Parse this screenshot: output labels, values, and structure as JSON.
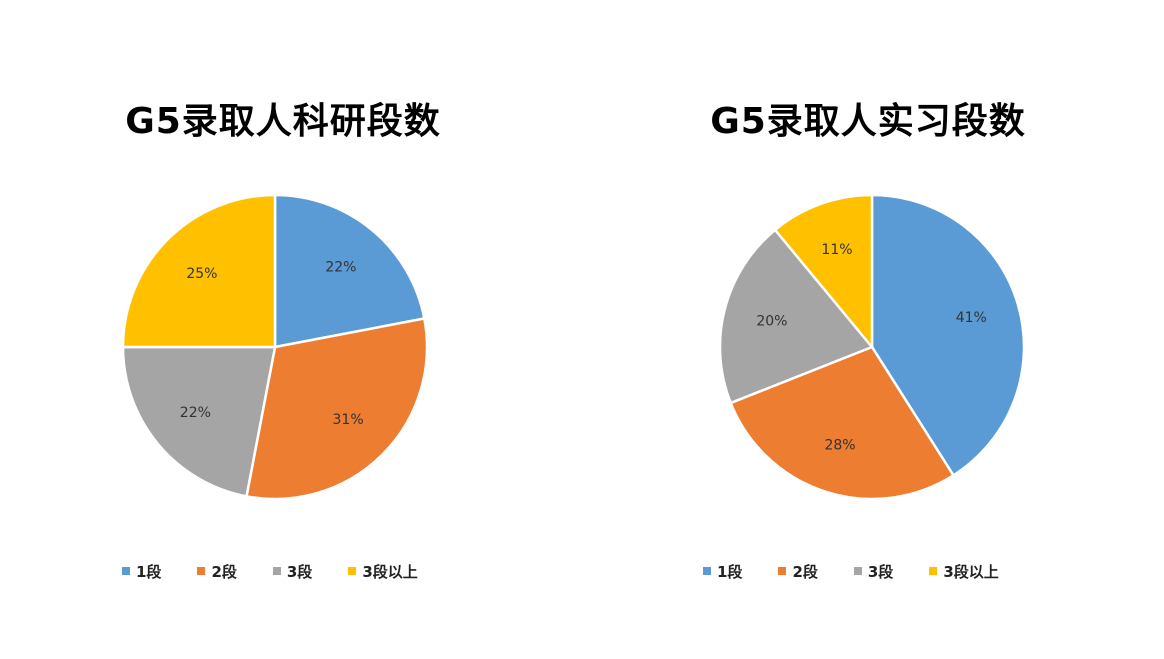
{
  "colors": {
    "1段": "#5B9BD5",
    "2段": "#ED7D31",
    "3段": "#A5A5A5",
    "3段以上": "#FFC000"
  },
  "chart_data": [
    {
      "type": "pie",
      "title": "G5录取人科研段数",
      "categories": [
        "1段",
        "2段",
        "3段",
        "3段以上"
      ],
      "values": [
        22,
        31,
        22,
        25
      ],
      "labels": [
        "22%",
        "31%",
        "22%",
        "25%"
      ],
      "colors": [
        "#5B9BD5",
        "#ED7D31",
        "#A5A5A5",
        "#FFC000"
      ],
      "legend": "bottom"
    },
    {
      "type": "pie",
      "title": "G5录取人实习段数",
      "categories": [
        "1段",
        "2段",
        "3段",
        "3段以上"
      ],
      "values": [
        41,
        28,
        20,
        11
      ],
      "labels": [
        "41%",
        "28%",
        "20%",
        "11%"
      ],
      "colors": [
        "#5B9BD5",
        "#ED7D31",
        "#A5A5A5",
        "#FFC000"
      ],
      "legend": "bottom"
    }
  ]
}
